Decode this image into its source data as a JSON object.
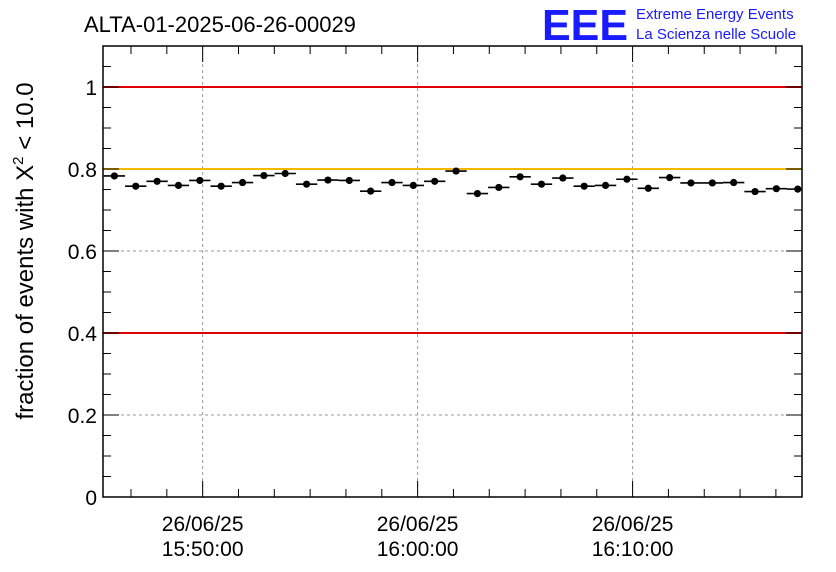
{
  "chart_data": {
    "type": "scatter",
    "title": "ALTA-01-2025-06-26-00029",
    "ylabel": {
      "prefix": "fraction of events with ",
      "symbol": "X",
      "superscript": "2",
      "suffix": " < 10.0"
    },
    "xlabel": "",
    "ylim": [
      0,
      1.1
    ],
    "xlim_minutes": [
      -20.3,
      28.8
    ],
    "yticks": [
      {
        "value": 0,
        "label": "0"
      },
      {
        "value": 0.2,
        "label": "0.2"
      },
      {
        "value": 0.4,
        "label": "0.4"
      },
      {
        "value": 0.6,
        "label": "0.6"
      },
      {
        "value": 0.8,
        "label": "0.8"
      },
      {
        "value": 1,
        "label": "1"
      }
    ],
    "xticks": [
      {
        "minutes": -13.3,
        "date": "26/06/25",
        "time": "15:50:00"
      },
      {
        "minutes": 1.8,
        "date": "26/06/25",
        "time": "16:00:00"
      },
      {
        "minutes": 16.9,
        "date": "26/06/25",
        "time": "16:10:00"
      }
    ],
    "reference_lines": [
      {
        "y": 1.0,
        "color": "#e00000"
      },
      {
        "y": 0.8,
        "color": "#f5b800"
      },
      {
        "y": 0.4,
        "color": "#e00000"
      }
    ],
    "grid": true,
    "bin_width_minutes": 1.5,
    "series": [
      {
        "name": "fraction",
        "x_minutes": [
          -19.5,
          -18.0,
          -16.5,
          -15.0,
          -13.5,
          -12.0,
          -10.5,
          -9.0,
          -7.5,
          -6.0,
          -4.5,
          -3.0,
          -1.5,
          0.0,
          1.5,
          3.0,
          4.5,
          6.0,
          7.5,
          9.0,
          10.5,
          12.0,
          13.5,
          15.0,
          16.5,
          18.0,
          19.5,
          21.0,
          22.5,
          24.0,
          25.5,
          27.0,
          28.5
        ],
        "values": [
          0.783,
          0.758,
          0.77,
          0.76,
          0.772,
          0.758,
          0.767,
          0.784,
          0.789,
          0.763,
          0.773,
          0.772,
          0.746,
          0.767,
          0.76,
          0.77,
          0.795,
          0.74,
          0.755,
          0.781,
          0.763,
          0.778,
          0.758,
          0.76,
          0.775,
          0.753,
          0.779,
          0.766,
          0.766,
          0.767,
          0.745,
          0.752,
          0.751
        ],
        "errors": [
          0.007,
          0.007,
          0.007,
          0.007,
          0.007,
          0.007,
          0.007,
          0.007,
          0.007,
          0.007,
          0.007,
          0.007,
          0.007,
          0.007,
          0.007,
          0.007,
          0.007,
          0.007,
          0.007,
          0.007,
          0.007,
          0.007,
          0.007,
          0.007,
          0.007,
          0.007,
          0.007,
          0.007,
          0.007,
          0.007,
          0.007,
          0.007,
          0.007
        ]
      }
    ]
  },
  "logo": {
    "mark": "EEE",
    "line1": "Extreme Energy Events",
    "line2": "La Scienza nelle Scuole",
    "color": "#1a1aff"
  }
}
